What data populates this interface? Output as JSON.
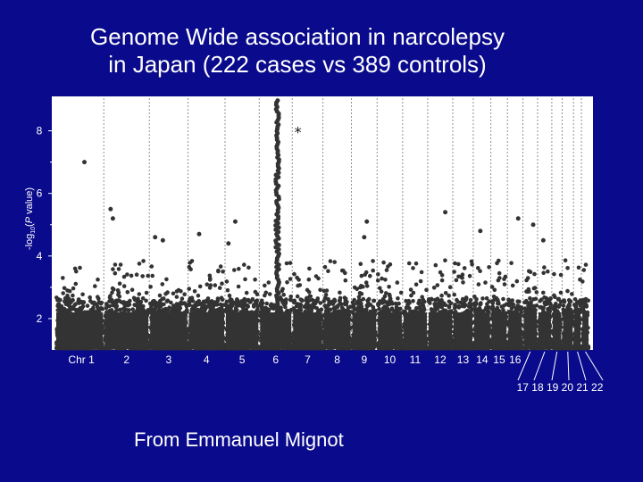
{
  "slide": {
    "title_line1": "Genome Wide association in narcolepsy",
    "title_line2": "in Japan (222 cases vs 389 controls)",
    "credit": "From Emmanuel Mignot"
  },
  "colors": {
    "background": "#0a0a8c",
    "plot_area": "#ffffff",
    "points": "#333333",
    "text": "#ffffff",
    "gridlines": "#777777"
  },
  "chart_data": {
    "type": "scatter",
    "title": "",
    "xlabel": "",
    "ylabel_parts": {
      "pre": "-log",
      "sub": "10",
      "mid": "(",
      "ital": "P",
      "post": " value)"
    },
    "ylim": [
      1,
      9.1
    ],
    "yticks": [
      2,
      4,
      6,
      8
    ],
    "y_minor_ticks": [
      3,
      5,
      7
    ],
    "chromosomes": [
      {
        "label": "Chr 1",
        "share": 0.085
      },
      {
        "label": "2",
        "share": 0.08
      },
      {
        "label": "3",
        "share": 0.068
      },
      {
        "label": "4",
        "share": 0.065
      },
      {
        "label": "5",
        "share": 0.06
      },
      {
        "label": "6",
        "share": 0.058
      },
      {
        "label": "7",
        "share": 0.054
      },
      {
        "label": "8",
        "share": 0.05
      },
      {
        "label": "9",
        "share": 0.045
      },
      {
        "label": "10",
        "share": 0.045
      },
      {
        "label": "11",
        "share": 0.044
      },
      {
        "label": "12",
        "share": 0.044
      },
      {
        "label": "13",
        "share": 0.036
      },
      {
        "label": "14",
        "share": 0.031
      },
      {
        "label": "15",
        "share": 0.029
      },
      {
        "label": "16",
        "share": 0.027
      },
      {
        "label": "17",
        "share": 0.026
      },
      {
        "label": "18",
        "share": 0.025
      },
      {
        "label": "19",
        "share": 0.018
      },
      {
        "label": "20",
        "share": 0.02
      },
      {
        "label": "21",
        "share": 0.014
      },
      {
        "label": "22",
        "share": 0.014
      }
    ],
    "bottom_labels": "17 18 19 20 21 22",
    "notable_points": [
      {
        "chr": "Chr 1",
        "pos": 0.6,
        "y": 7.0
      },
      {
        "chr": "2",
        "pos": 0.15,
        "y": 5.5
      },
      {
        "chr": "2",
        "pos": 0.2,
        "y": 5.2
      },
      {
        "chr": "3",
        "pos": 0.15,
        "y": 4.6
      },
      {
        "chr": "3",
        "pos": 0.35,
        "y": 4.5
      },
      {
        "chr": "4",
        "pos": 0.3,
        "y": 4.7
      },
      {
        "chr": "5",
        "pos": 0.1,
        "y": 4.4
      },
      {
        "chr": "5",
        "pos": 0.3,
        "y": 5.1
      },
      {
        "chr": "9",
        "pos": 0.6,
        "y": 5.1
      },
      {
        "chr": "9",
        "pos": 0.5,
        "y": 4.6
      },
      {
        "chr": "12",
        "pos": 0.7,
        "y": 5.4
      },
      {
        "chr": "14",
        "pos": 0.4,
        "y": 4.8
      },
      {
        "chr": "16",
        "pos": 0.7,
        "y": 5.2
      },
      {
        "chr": "17",
        "pos": 0.7,
        "y": 5.0
      },
      {
        "chr": "18",
        "pos": 0.4,
        "y": 4.5
      }
    ],
    "peak": {
      "chr": "6",
      "pos": 0.55,
      "max_y": 9.0
    },
    "star_marker": {
      "chr": "6",
      "pos": 0.85,
      "y": 8.0,
      "symbol": "*"
    },
    "grid": "vertical dashed chromosome separators"
  }
}
